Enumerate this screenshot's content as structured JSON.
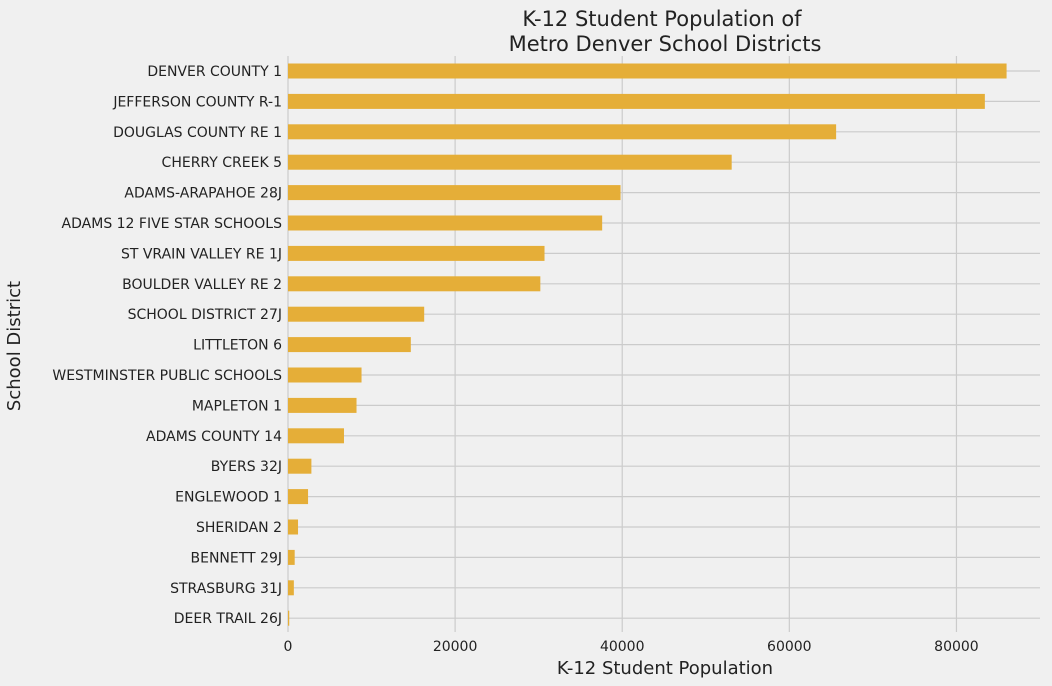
{
  "chart_data": {
    "type": "bar",
    "orientation": "horizontal",
    "title": [
      "K-12 Student Population of",
      "Metro Denver School Districts"
    ],
    "xlabel": "K-12 Student Population",
    "ylabel": "School District",
    "xlim": [
      0,
      90000
    ],
    "x_ticks": [
      0,
      20000,
      40000,
      60000,
      80000
    ],
    "x_tick_labels": [
      "0",
      "20000",
      "40000",
      "60000",
      "80000"
    ],
    "grid": true,
    "bar_color": "#e5ae38",
    "background": "#f0f0f0",
    "grid_color": "#cbcbcb",
    "categories": [
      "DENVER COUNTY 1",
      "JEFFERSON COUNTY R-1",
      "DOUGLAS COUNTY RE 1",
      "CHERRY CREEK 5",
      "ADAMS-ARAPAHOE 28J",
      "ADAMS 12 FIVE STAR SCHOOLS",
      "ST VRAIN VALLEY RE 1J",
      "BOULDER VALLEY RE 2",
      "SCHOOL DISTRICT 27J",
      "LITTLETON 6",
      "WESTMINSTER PUBLIC SCHOOLS",
      "MAPLETON 1",
      "ADAMS COUNTY 14",
      "BYERS 32J",
      "ENGLEWOOD 1",
      "SHERIDAN 2",
      "BENNETT 29J",
      "STRASBURG 31J",
      "DEER TRAIL 26J"
    ],
    "values": [
      86000,
      83400,
      65600,
      53100,
      39800,
      37600,
      30700,
      30200,
      16300,
      14700,
      8800,
      8200,
      6700,
      2800,
      2400,
      1200,
      800,
      700,
      150
    ]
  }
}
